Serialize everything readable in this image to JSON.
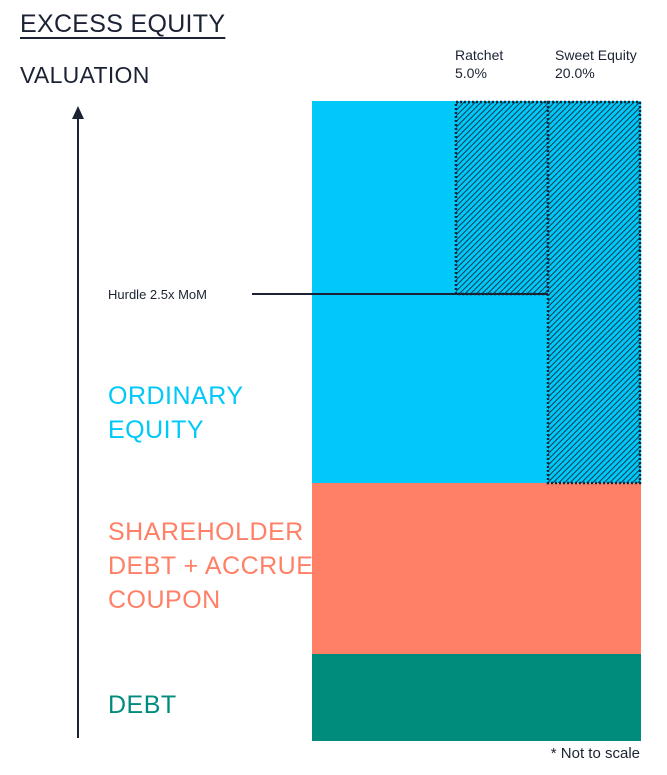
{
  "title": "EXCESS EQUITY",
  "axis_label": "VALUATION",
  "columns": {
    "ratchet": {
      "name": "Ratchet",
      "value": "5.0%"
    },
    "sweet_equity": {
      "name": "Sweet Equity",
      "value": "20.0%"
    }
  },
  "hurdle_label": "Hurdle 2.5x MoM",
  "bands": {
    "ordinary_equity": {
      "lines": [
        "ORDINARY",
        "EQUITY"
      ],
      "color": "#00c8f8"
    },
    "shareholder_debt": {
      "lines": [
        "SHAREHOLDER",
        "DEBT + ACCRUED",
        "COUPON"
      ],
      "color": "#ff8066"
    },
    "debt": {
      "lines": [
        "DEBT"
      ],
      "color": "#008c7c"
    }
  },
  "hatch_color": "#0a2a3c",
  "note": "* Not to scale"
}
